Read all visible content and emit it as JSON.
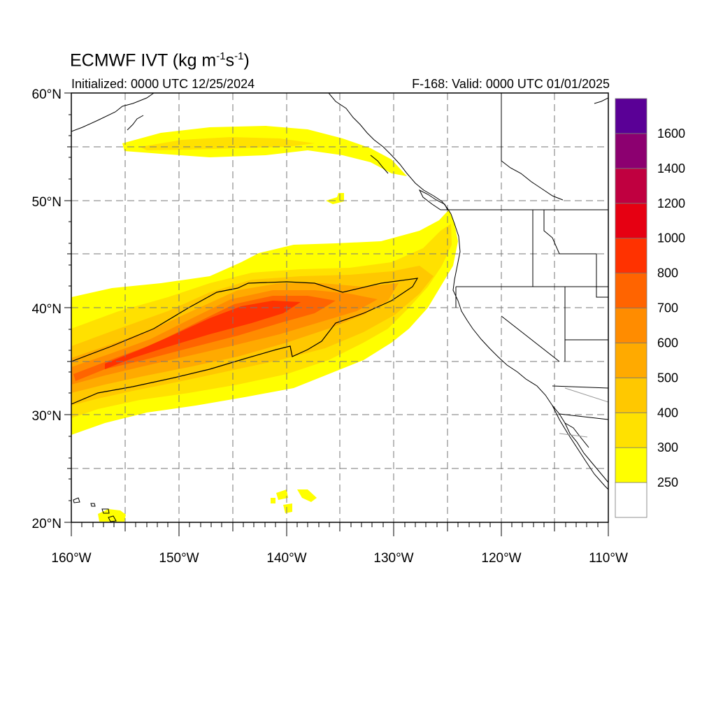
{
  "title": {
    "main": "ECMWF IVT (kg m",
    "exp1": "-1",
    "mid": "s",
    "exp2": "-1",
    "close": ")"
  },
  "initialized": "Initialized: 0000 UTC 12/25/2024",
  "valid": "F-168: Valid: 0000 UTC 01/01/2025",
  "map": {
    "lon_range": [
      -160,
      -110
    ],
    "lat_range": [
      20,
      60
    ],
    "lon_ticks": [
      "160°W",
      "150°W",
      "140°W",
      "130°W",
      "120°W",
      "110°W"
    ],
    "lat_ticks": [
      "20°N",
      "30°N",
      "40°N",
      "50°N",
      "60°N"
    ],
    "grid": "dashed, every 5°",
    "feature": "atmospheric river from ~32°N 160°W to Pacific Northwest coast near 45–48°N"
  },
  "colorbar": {
    "labels": [
      "250",
      "300",
      "400",
      "500",
      "600",
      "700",
      "800",
      "1000",
      "1200",
      "1400",
      "1600"
    ],
    "colors": [
      "#ffffff",
      "#ffff00",
      "#ffe100",
      "#ffc800",
      "#ffaa00",
      "#ff8c00",
      "#ff6400",
      "#ff3200",
      "#e60012",
      "#c00040",
      "#8c0070",
      "#5a0096"
    ]
  }
}
